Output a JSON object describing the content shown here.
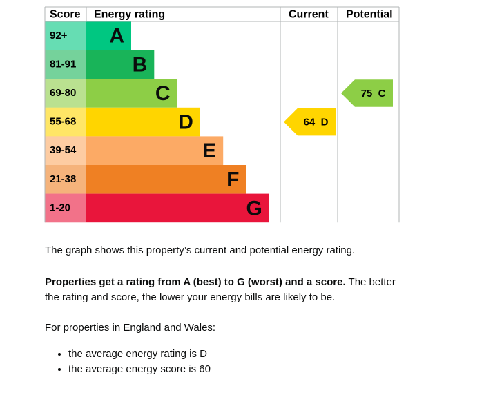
{
  "chart": {
    "headers": [
      "Score",
      "Energy rating",
      "Current",
      "Potential"
    ],
    "bands": [
      {
        "score": "92+",
        "letter": "A",
        "color": "#00c781"
      },
      {
        "score": "81-91",
        "letter": "B",
        "color": "#19b459"
      },
      {
        "score": "69-80",
        "letter": "C",
        "color": "#8dce46"
      },
      {
        "score": "55-68",
        "letter": "D",
        "color": "#ffd500"
      },
      {
        "score": "39-54",
        "letter": "E",
        "color": "#fcaa65"
      },
      {
        "score": "21-38",
        "letter": "F",
        "color": "#ef8023"
      },
      {
        "score": "1-20",
        "letter": "G",
        "color": "#e9153b"
      }
    ],
    "current": {
      "score": 64,
      "letter": "D"
    },
    "potential": {
      "score": 75,
      "letter": "C"
    }
  },
  "text": {
    "intro": "The graph shows this property’s current and potential energy rating.",
    "rating_bold": "Properties get a rating from A (best) to G (worst) and a score.",
    "rating_rest": "The better the rating and score, the lower your energy bills are likely to be.",
    "england_wales": "For properties in England and Wales:",
    "bullets": [
      "the average energy rating is D",
      "the average energy score is 60"
    ]
  }
}
